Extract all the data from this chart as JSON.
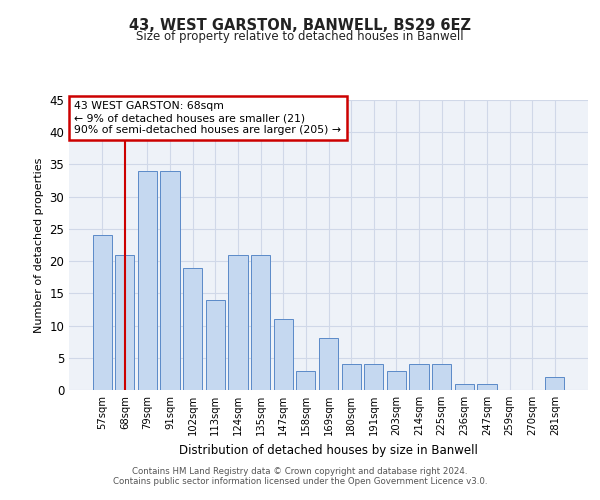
{
  "title": "43, WEST GARSTON, BANWELL, BS29 6EZ",
  "subtitle": "Size of property relative to detached houses in Banwell",
  "xlabel": "Distribution of detached houses by size in Banwell",
  "ylabel": "Number of detached properties",
  "categories": [
    "57sqm",
    "68sqm",
    "79sqm",
    "91sqm",
    "102sqm",
    "113sqm",
    "124sqm",
    "135sqm",
    "147sqm",
    "158sqm",
    "169sqm",
    "180sqm",
    "191sqm",
    "203sqm",
    "214sqm",
    "225sqm",
    "236sqm",
    "247sqm",
    "259sqm",
    "270sqm",
    "281sqm"
  ],
  "values": [
    24,
    21,
    34,
    34,
    19,
    14,
    21,
    21,
    11,
    3,
    8,
    4,
    4,
    3,
    4,
    4,
    1,
    1,
    0,
    0,
    2
  ],
  "bar_color": "#c5d8f0",
  "bar_edge_color": "#5b8ac8",
  "highlight_bar_index": 1,
  "highlight_line_color": "#cc0000",
  "ylim": [
    0,
    45
  ],
  "yticks": [
    0,
    5,
    10,
    15,
    20,
    25,
    30,
    35,
    40,
    45
  ],
  "annotation_text": "43 WEST GARSTON: 68sqm\n← 9% of detached houses are smaller (21)\n90% of semi-detached houses are larger (205) →",
  "annotation_box_color": "#cc0000",
  "grid_color": "#d0d8e8",
  "bg_color": "#eef2f8",
  "footer_line1": "Contains HM Land Registry data © Crown copyright and database right 2024.",
  "footer_line2": "Contains public sector information licensed under the Open Government Licence v3.0."
}
